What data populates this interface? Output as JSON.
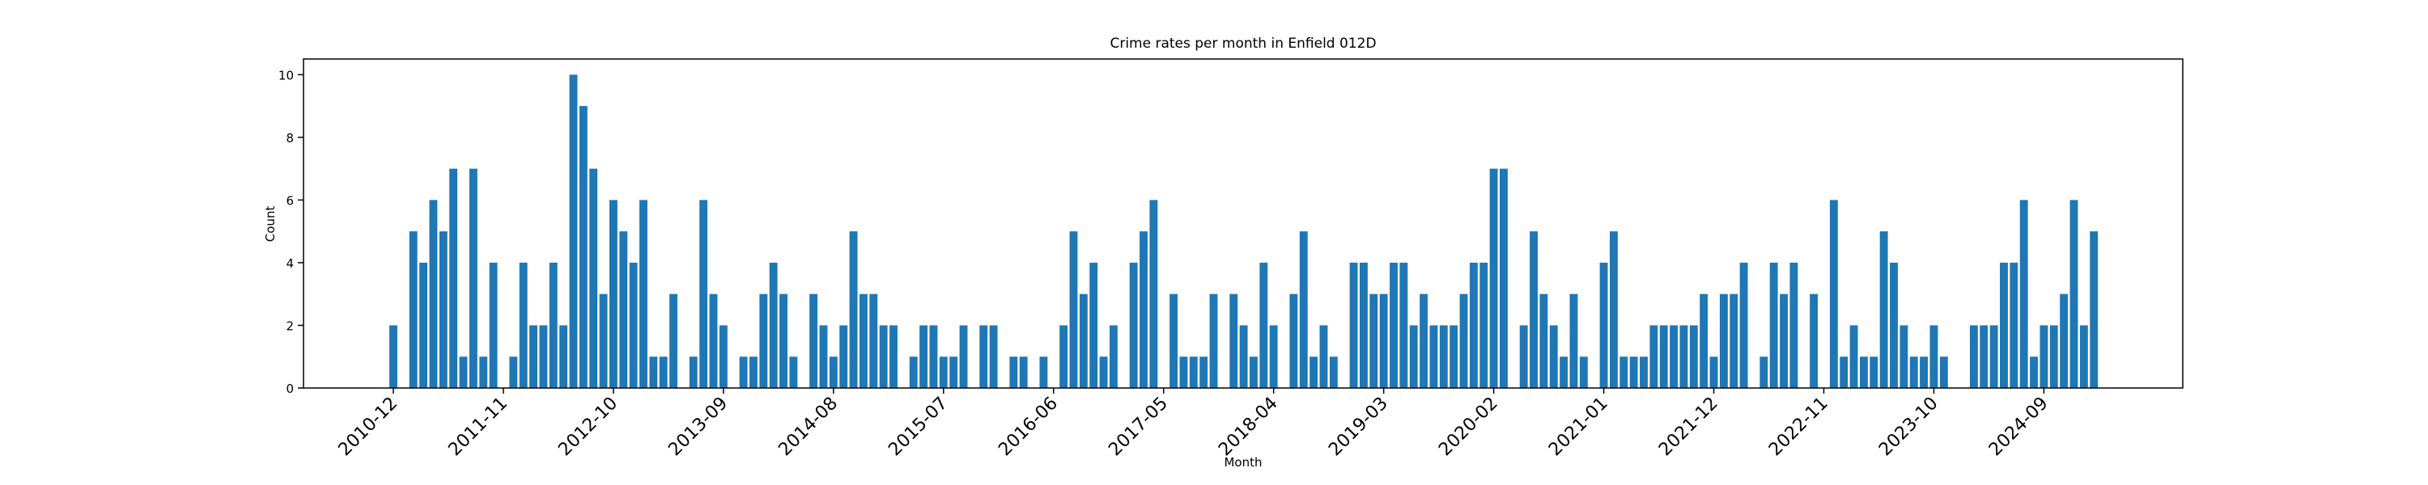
{
  "chart_data": {
    "type": "bar",
    "title": "Crime rates per month in Enfield 012D",
    "xlabel": "Month",
    "ylabel": "Count",
    "color": "#1f77b4",
    "categories": [
      "2010-12",
      null,
      null,
      null,
      null,
      null,
      null,
      null,
      null,
      null,
      null,
      "2011-11",
      null,
      null,
      null,
      null,
      null,
      null,
      null,
      null,
      null,
      null,
      "2012-10",
      null,
      null,
      null,
      null,
      null,
      null,
      null,
      null,
      null,
      null,
      "2013-09",
      null,
      null,
      null,
      null,
      null,
      null,
      null,
      null,
      null,
      null,
      "2014-08",
      null,
      null,
      null,
      null,
      null,
      null,
      null,
      null,
      null,
      null,
      "2015-07",
      null,
      null,
      null,
      null,
      null,
      null,
      null,
      null,
      null,
      null,
      "2016-06",
      null,
      null,
      null,
      null,
      null,
      null,
      null,
      null,
      null,
      null,
      "2017-05",
      null,
      null,
      null,
      null,
      null,
      null,
      null,
      null,
      null,
      null,
      "2018-04",
      null,
      null,
      null,
      null,
      null,
      null,
      null,
      null,
      null,
      null,
      "2019-03",
      null,
      null,
      null,
      null,
      null,
      null,
      null,
      null,
      null,
      null,
      "2020-02",
      null,
      null,
      null,
      null,
      null,
      null,
      null,
      null,
      null,
      null,
      "2021-01",
      null,
      null,
      null,
      null,
      null,
      null,
      null,
      null,
      null,
      null,
      "2021-12",
      null,
      null,
      null,
      null,
      null,
      null,
      null,
      null,
      null,
      null,
      "2022-11",
      null,
      null,
      null,
      null,
      null,
      null,
      null,
      null,
      null,
      null,
      "2023-10",
      null,
      null,
      null,
      null,
      null,
      null,
      null,
      null,
      null,
      null,
      "2024-09",
      null,
      null,
      null,
      null,
      null
    ],
    "values": [
      2,
      0,
      5,
      4,
      6,
      5,
      7,
      1,
      7,
      1,
      4,
      0,
      1,
      4,
      2,
      2,
      4,
      2,
      10,
      9,
      7,
      3,
      6,
      5,
      4,
      6,
      1,
      1,
      3,
      0,
      1,
      6,
      3,
      2,
      0,
      1,
      1,
      3,
      4,
      3,
      1,
      0,
      3,
      2,
      1,
      2,
      5,
      3,
      3,
      2,
      2,
      0,
      1,
      2,
      2,
      1,
      1,
      2,
      0,
      2,
      2,
      0,
      1,
      1,
      0,
      1,
      0,
      2,
      5,
      3,
      4,
      1,
      2,
      0,
      4,
      5,
      6,
      0,
      3,
      1,
      1,
      1,
      3,
      0,
      3,
      2,
      1,
      4,
      2,
      0,
      3,
      5,
      1,
      2,
      1,
      0,
      4,
      4,
      3,
      3,
      4,
      4,
      2,
      3,
      2,
      2,
      2,
      3,
      4,
      4,
      7,
      7,
      0,
      2,
      5,
      3,
      2,
      1,
      3,
      1,
      0,
      4,
      5,
      1,
      1,
      1,
      2,
      2,
      2,
      2,
      2,
      3,
      1,
      3,
      3,
      4,
      0,
      1,
      4,
      3,
      4,
      0,
      3,
      0,
      6,
      1,
      2,
      1,
      1,
      5,
      4,
      2,
      1,
      1,
      2,
      1,
      0,
      0,
      2,
      2,
      2,
      4,
      4,
      6,
      1,
      2,
      2,
      3,
      6,
      2,
      5
    ],
    "ylim": [
      0,
      10.5
    ],
    "yticks": [
      0,
      2,
      4,
      6,
      8,
      10
    ]
  }
}
